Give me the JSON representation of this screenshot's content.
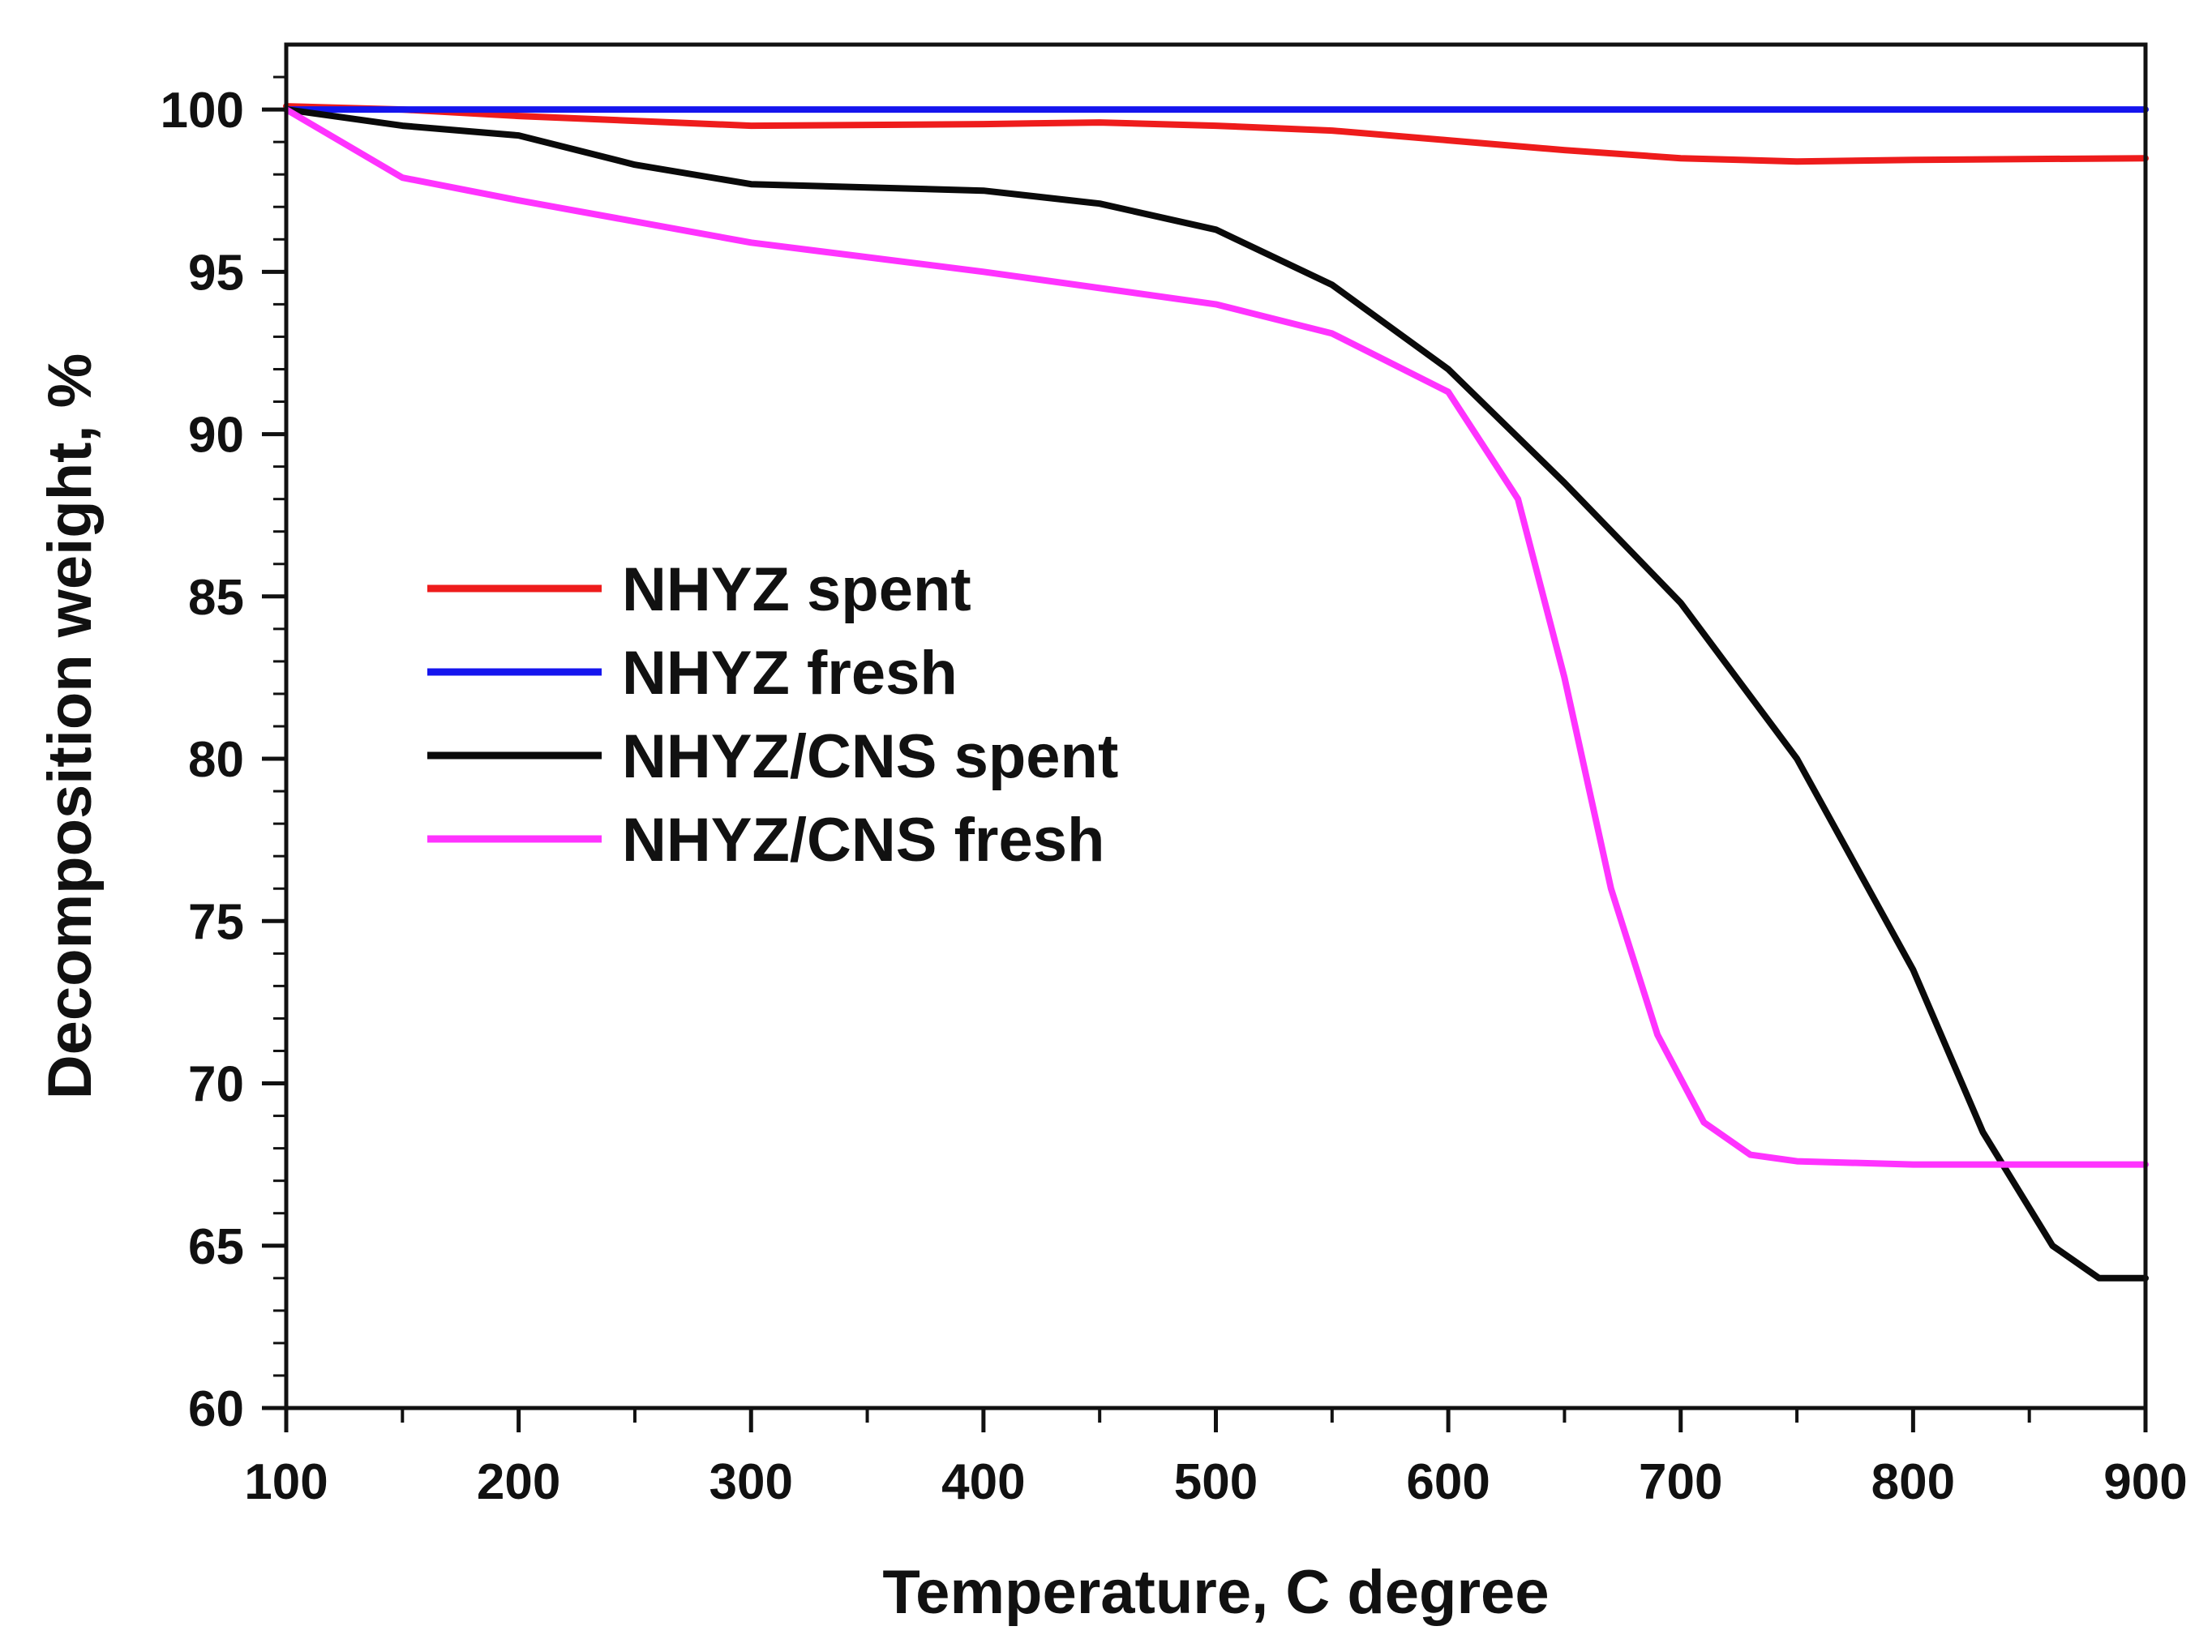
{
  "chart_data": {
    "type": "line",
    "title": "",
    "xlabel": "Temperature, C degree",
    "ylabel": "Decomposition weight, %",
    "xlim": [
      100,
      900
    ],
    "ylim": [
      60,
      102
    ],
    "x_ticks": [
      100,
      200,
      300,
      400,
      500,
      600,
      700,
      800,
      900
    ],
    "y_ticks": [
      60,
      65,
      70,
      75,
      80,
      85,
      90,
      95,
      100
    ],
    "x_tick_labels": [
      "100",
      "200",
      "300",
      "400",
      "500",
      "600",
      "700",
      "800",
      "900"
    ],
    "y_tick_labels": [
      "60",
      "65",
      "70",
      "75",
      "80",
      "85",
      "90",
      "95",
      "100"
    ],
    "grid": false,
    "legend_position": "center-left",
    "series": [
      {
        "name": "NHYZ spent",
        "color": "#ee1c1c",
        "x": [
          100,
          150,
          200,
          300,
          400,
          450,
          500,
          550,
          600,
          650,
          700,
          750,
          800,
          900
        ],
        "y": [
          100.1,
          100.0,
          99.8,
          99.5,
          99.55,
          99.6,
          99.5,
          99.35,
          99.05,
          98.75,
          98.5,
          98.4,
          98.45,
          98.5
        ]
      },
      {
        "name": "NHYZ fresh",
        "color": "#1515ee",
        "x": [
          100,
          900
        ],
        "y": [
          100.0,
          100.0
        ]
      },
      {
        "name": "NHYZ/CNS spent",
        "color": "#0a0a0a",
        "x": [
          100,
          150,
          200,
          250,
          300,
          350,
          400,
          450,
          500,
          550,
          600,
          650,
          700,
          750,
          800,
          830,
          860,
          880,
          900
        ],
        "y": [
          100.0,
          99.5,
          99.2,
          98.3,
          97.7,
          97.6,
          97.5,
          97.1,
          96.3,
          94.6,
          92.0,
          88.5,
          84.8,
          80.0,
          73.5,
          68.5,
          65.0,
          64.0,
          64.0
        ]
      },
      {
        "name": "NHYZ/CNS fresh",
        "color": "#ff33ff",
        "x": [
          100,
          150,
          200,
          300,
          400,
          500,
          550,
          600,
          630,
          650,
          670,
          690,
          710,
          730,
          750,
          800,
          900
        ],
        "y": [
          100.0,
          97.9,
          97.2,
          95.9,
          95.0,
          94.0,
          93.1,
          91.3,
          88.0,
          82.5,
          76.0,
          71.5,
          68.8,
          67.8,
          67.6,
          67.5,
          67.5
        ]
      }
    ]
  }
}
